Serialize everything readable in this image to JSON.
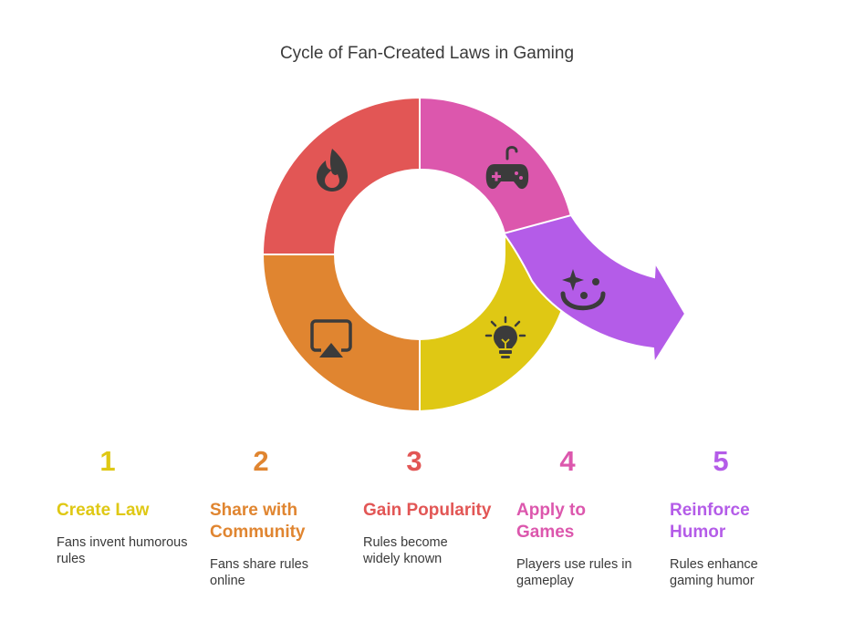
{
  "title": "Cycle of Fan-Created Laws in Gaming",
  "steps": [
    {
      "number": "1",
      "title": "Create Law",
      "description": "Fans invent humorous rules",
      "color": "#dfc814",
      "icon": "fire-icon"
    },
    {
      "number": "2",
      "title": "Share with Community",
      "description": "Fans share rules online",
      "color": "#e08530",
      "icon": "screen-share-icon"
    },
    {
      "number": "3",
      "title": "Gain Popularity",
      "description": "Rules become widely known",
      "color": "#e25655",
      "icon": "lightbulb-icon"
    },
    {
      "number": "4",
      "title": "Apply to Games",
      "description": "Players use rules in gameplay",
      "color": "#dc57ad",
      "icon": "gamepad-icon"
    },
    {
      "number": "5",
      "title": "Reinforce Humor",
      "description": "Rules enhance gaming humor",
      "color": "#b45ce8",
      "icon": "clown-face-icon"
    }
  ],
  "colors": {
    "yellow": "#dfc814",
    "orange": "#e08530",
    "red": "#e25655",
    "pink": "#dc57ad",
    "purple": "#b45ce8",
    "icon": "#3b3b3b"
  }
}
